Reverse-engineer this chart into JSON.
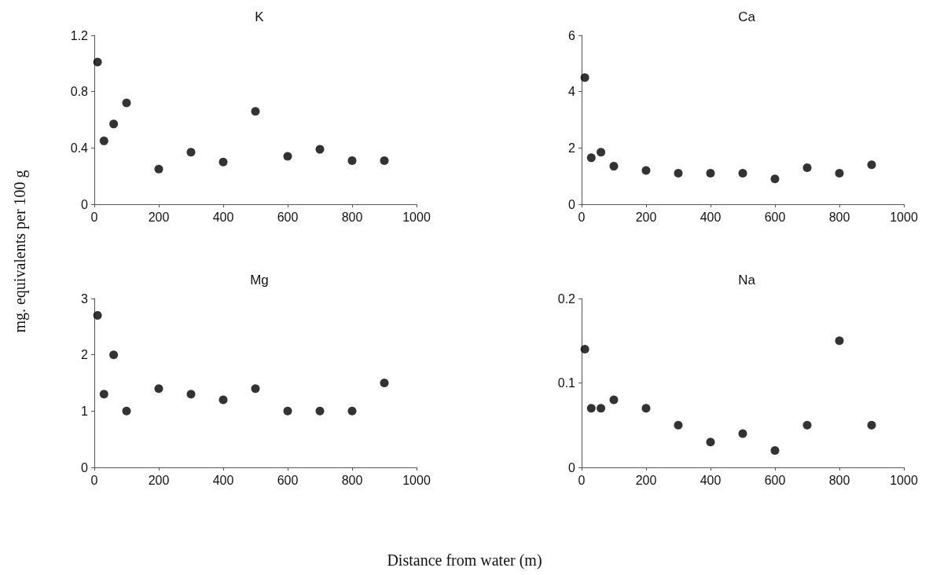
{
  "chart_data": [
    {
      "type": "scatter",
      "title": "K",
      "ylabel": "mg. equivalents per 100 g",
      "x": [
        10,
        30,
        60,
        100,
        200,
        300,
        400,
        500,
        600,
        700,
        800,
        900
      ],
      "series": [
        {
          "color": "#000000",
          "values": [
            1.01,
            0.45,
            0.57,
            0.72,
            0.25,
            0.37,
            0.3,
            0.66,
            0.34,
            0.39,
            0.31,
            0.31
          ]
        }
      ],
      "xlim": [
        0,
        1000
      ],
      "xticks": [
        0,
        200,
        400,
        600,
        800,
        1000
      ],
      "ylim": [
        0,
        1.2
      ],
      "yticks": [
        0,
        0.4,
        0.8,
        1.2
      ],
      "marker": "circle",
      "grid": false
    },
    {
      "type": "scatter",
      "title": "Ca",
      "x": [
        10,
        30,
        60,
        100,
        200,
        300,
        400,
        500,
        600,
        700,
        800,
        900
      ],
      "series": [
        {
          "color": "#000000",
          "values": [
            4.5,
            1.65,
            1.85,
            1.35,
            1.2,
            1.1,
            1.1,
            1.1,
            0.9,
            1.3,
            1.1,
            1.4
          ]
        }
      ],
      "xlim": [
        0,
        1000
      ],
      "xticks": [
        0,
        200,
        400,
        600,
        800,
        1000
      ],
      "ylim": [
        0,
        6
      ],
      "yticks": [
        0,
        2,
        4,
        6
      ],
      "marker": "circle",
      "grid": false
    },
    {
      "type": "scatter",
      "title": "Mg",
      "xlabel": "Distance from water (m)",
      "x": [
        10,
        30,
        60,
        100,
        200,
        300,
        400,
        500,
        600,
        700,
        800,
        900
      ],
      "series": [
        {
          "color": "#000000",
          "values": [
            2.7,
            1.3,
            2.0,
            1.0,
            1.4,
            1.3,
            1.2,
            1.4,
            1.0,
            1.0,
            1.0,
            1.5
          ]
        }
      ],
      "xlim": [
        0,
        1000
      ],
      "xticks": [
        0,
        200,
        400,
        600,
        800,
        1000
      ],
      "ylim": [
        0,
        3
      ],
      "yticks": [
        0,
        1,
        2,
        3
      ],
      "marker": "circle",
      "grid": false
    },
    {
      "type": "scatter",
      "title": "Na",
      "x": [
        10,
        30,
        60,
        100,
        200,
        300,
        400,
        500,
        600,
        700,
        800,
        900
      ],
      "series": [
        {
          "color": "#000000",
          "values": [
            0.14,
            0.07,
            0.07,
            0.08,
            0.07,
            0.05,
            0.03,
            0.04,
            0.02,
            0.05,
            0.15,
            0.05
          ]
        }
      ],
      "xlim": [
        0,
        1000
      ],
      "xticks": [
        0,
        200,
        400,
        600,
        800,
        1000
      ],
      "ylim": [
        0,
        0.2
      ],
      "yticks": [
        0,
        0.1,
        0.2
      ],
      "marker": "circle",
      "grid": false
    }
  ]
}
